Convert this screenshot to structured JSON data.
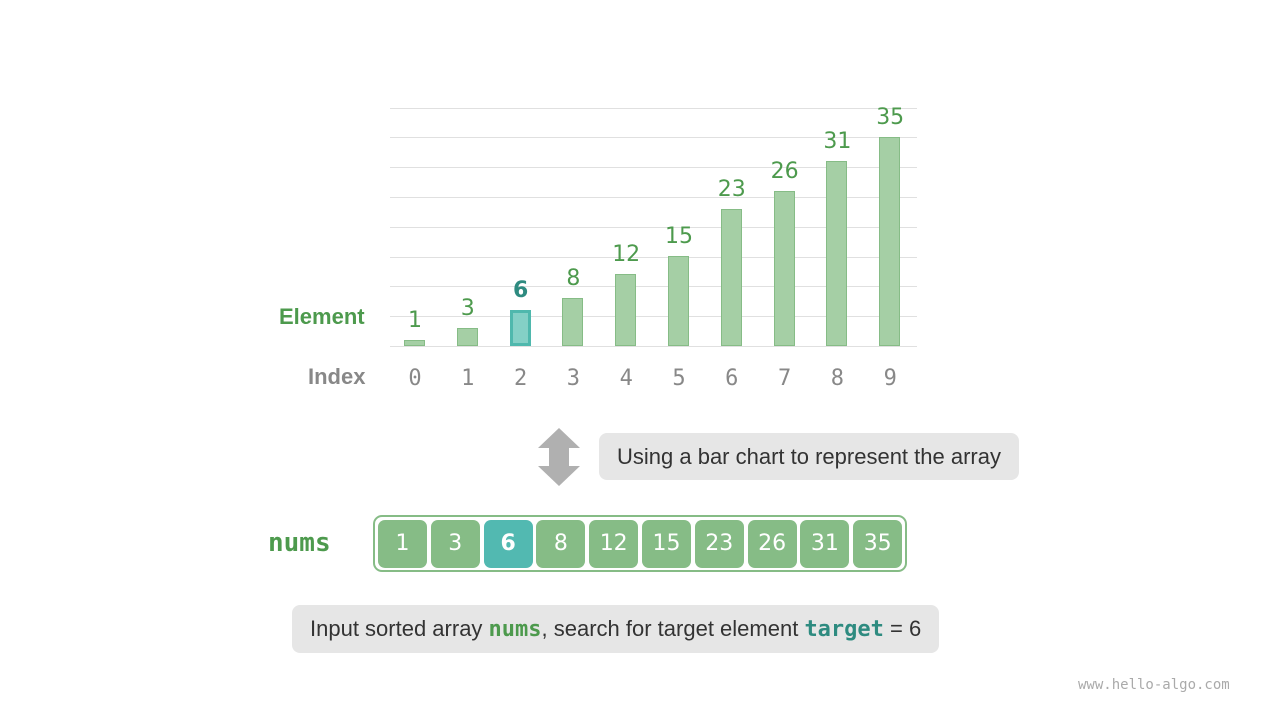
{
  "chart_data": {
    "type": "bar",
    "categories": [
      "0",
      "1",
      "2",
      "3",
      "4",
      "5",
      "6",
      "7",
      "8",
      "9"
    ],
    "values": [
      1,
      3,
      6,
      8,
      12,
      15,
      23,
      26,
      31,
      35
    ],
    "highlight_index": 2,
    "ylabel": "Element",
    "xlabel": "Index",
    "grid": true
  },
  "array": {
    "name": "nums",
    "values": [
      1,
      3,
      6,
      8,
      12,
      15,
      23,
      26,
      31,
      35
    ],
    "highlight_index": 2
  },
  "arrow_caption": "Using a bar chart to represent the array",
  "caption": {
    "pre": "Input sorted array ",
    "nums": "nums",
    "mid": ", search for target element ",
    "target": "target",
    "post": " = 6"
  },
  "watermark": "www.hello-algo.com",
  "colors": {
    "bar": "#a5cfa5",
    "highlight": "#52b9b1",
    "green_text": "#4d9a4d",
    "teal_text": "#2e8b80"
  }
}
